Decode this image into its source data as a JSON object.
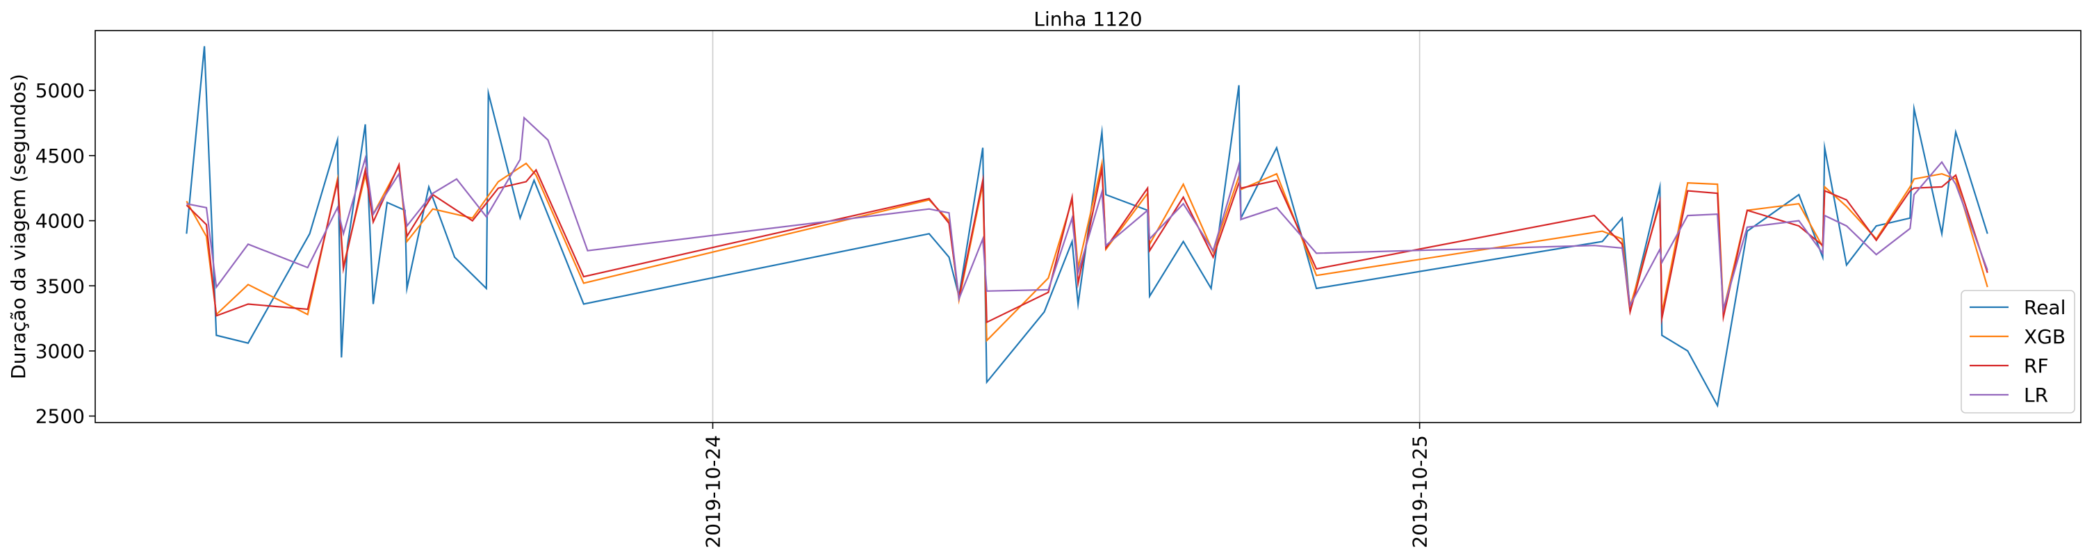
{
  "chart_data": {
    "type": "line",
    "title": "Linha 1120",
    "xlabel": "",
    "ylabel": "Duração da viagem (segundos)",
    "ylim": [
      2450,
      5460
    ],
    "yticks": [
      2500,
      3000,
      3500,
      4000,
      4500,
      5000
    ],
    "xlim": [
      0,
      1000
    ],
    "xticks": [
      {
        "x": 311,
        "label": "2019-10-24"
      },
      {
        "x": 667,
        "label": "2019-10-25"
      }
    ],
    "grid": "vertical",
    "legend_position": "lower-right",
    "series": [
      {
        "name": "Real",
        "color": "#1f77b4",
        "points": [
          [
            46,
            3900
          ],
          [
            55,
            5340
          ],
          [
            61,
            3120
          ],
          [
            77,
            3060
          ],
          [
            108,
            3900
          ],
          [
            122,
            4620
          ],
          [
            124,
            2950
          ],
          [
            127,
            3800
          ],
          [
            136,
            4740
          ],
          [
            140,
            3360
          ],
          [
            147,
            4140
          ],
          [
            156,
            4080
          ],
          [
            157,
            3480
          ],
          [
            168,
            4260
          ],
          [
            181,
            3720
          ],
          [
            197,
            3480
          ],
          [
            198,
            4980
          ],
          [
            214,
            4020
          ],
          [
            221,
            4310
          ],
          [
            246,
            3360
          ],
          [
            420,
            3900
          ],
          [
            430,
            3720
          ],
          [
            435,
            3420
          ],
          [
            447,
            4560
          ],
          [
            449,
            2760
          ],
          [
            478,
            3300
          ],
          [
            492,
            3840
          ],
          [
            495,
            3360
          ],
          [
            507,
            4680
          ],
          [
            509,
            4200
          ],
          [
            530,
            4080
          ],
          [
            531,
            3420
          ],
          [
            548,
            3840
          ],
          [
            562,
            3480
          ],
          [
            576,
            5040
          ],
          [
            577,
            4020
          ],
          [
            595,
            4560
          ],
          [
            615,
            3480
          ],
          [
            759,
            3840
          ],
          [
            769,
            4020
          ],
          [
            773,
            3310
          ],
          [
            788,
            4260
          ],
          [
            789,
            3120
          ],
          [
            802,
            3000
          ],
          [
            817,
            2580
          ],
          [
            832,
            3920
          ],
          [
            858,
            4200
          ],
          [
            870,
            3720
          ],
          [
            871,
            4560
          ],
          [
            882,
            3660
          ],
          [
            897,
            3960
          ],
          [
            914,
            4020
          ],
          [
            916,
            4860
          ],
          [
            930,
            3900
          ],
          [
            937,
            4680
          ],
          [
            953,
            3900
          ]
        ]
      },
      {
        "name": "XGB",
        "color": "#ff7f0e",
        "points": [
          [
            46,
            4150
          ],
          [
            56,
            3880
          ],
          [
            61,
            3280
          ],
          [
            77,
            3510
          ],
          [
            107,
            3280
          ],
          [
            122,
            4320
          ],
          [
            125,
            3650
          ],
          [
            136,
            4350
          ],
          [
            140,
            4050
          ],
          [
            153,
            4420
          ],
          [
            157,
            3840
          ],
          [
            170,
            4090
          ],
          [
            190,
            4020
          ],
          [
            203,
            4300
          ],
          [
            217,
            4440
          ],
          [
            222,
            4350
          ],
          [
            246,
            3520
          ],
          [
            420,
            4160
          ],
          [
            430,
            4000
          ],
          [
            435,
            3390
          ],
          [
            447,
            4280
          ],
          [
            449,
            3080
          ],
          [
            480,
            3560
          ],
          [
            492,
            4160
          ],
          [
            495,
            3640
          ],
          [
            507,
            4440
          ],
          [
            509,
            3780
          ],
          [
            530,
            4210
          ],
          [
            531,
            3820
          ],
          [
            548,
            4280
          ],
          [
            563,
            3760
          ],
          [
            576,
            4340
          ],
          [
            577,
            4240
          ],
          [
            595,
            4360
          ],
          [
            615,
            3580
          ],
          [
            759,
            3920
          ],
          [
            769,
            3860
          ],
          [
            773,
            3340
          ],
          [
            788,
            4130
          ],
          [
            789,
            3290
          ],
          [
            802,
            4290
          ],
          [
            817,
            4280
          ],
          [
            820,
            3310
          ],
          [
            832,
            4080
          ],
          [
            858,
            4130
          ],
          [
            870,
            3800
          ],
          [
            871,
            4260
          ],
          [
            882,
            4110
          ],
          [
            897,
            3860
          ],
          [
            914,
            4260
          ],
          [
            916,
            4320
          ],
          [
            930,
            4360
          ],
          [
            937,
            4320
          ],
          [
            953,
            3490
          ]
        ]
      },
      {
        "name": "RF",
        "color": "#d62728",
        "points": [
          [
            46,
            4120
          ],
          [
            56,
            3970
          ],
          [
            61,
            3270
          ],
          [
            77,
            3360
          ],
          [
            107,
            3320
          ],
          [
            122,
            4300
          ],
          [
            125,
            3630
          ],
          [
            136,
            4390
          ],
          [
            140,
            3990
          ],
          [
            153,
            4430
          ],
          [
            157,
            3880
          ],
          [
            170,
            4200
          ],
          [
            190,
            4000
          ],
          [
            203,
            4250
          ],
          [
            217,
            4300
          ],
          [
            222,
            4390
          ],
          [
            246,
            3570
          ],
          [
            420,
            4170
          ],
          [
            430,
            3980
          ],
          [
            435,
            3410
          ],
          [
            447,
            4310
          ],
          [
            449,
            3220
          ],
          [
            480,
            3450
          ],
          [
            492,
            4180
          ],
          [
            495,
            3520
          ],
          [
            507,
            4400
          ],
          [
            509,
            3790
          ],
          [
            530,
            4250
          ],
          [
            531,
            3770
          ],
          [
            548,
            4180
          ],
          [
            563,
            3720
          ],
          [
            576,
            4290
          ],
          [
            577,
            4250
          ],
          [
            595,
            4310
          ],
          [
            615,
            3630
          ],
          [
            755,
            4040
          ],
          [
            769,
            3820
          ],
          [
            773,
            3300
          ],
          [
            788,
            4150
          ],
          [
            789,
            3250
          ],
          [
            802,
            4230
          ],
          [
            817,
            4210
          ],
          [
            820,
            3260
          ],
          [
            832,
            4080
          ],
          [
            858,
            3960
          ],
          [
            870,
            3810
          ],
          [
            871,
            4230
          ],
          [
            882,
            4160
          ],
          [
            897,
            3850
          ],
          [
            914,
            4230
          ],
          [
            916,
            4250
          ],
          [
            930,
            4260
          ],
          [
            937,
            4350
          ],
          [
            953,
            3600
          ]
        ]
      },
      {
        "name": "LR",
        "color": "#9467bd",
        "points": [
          [
            46,
            4130
          ],
          [
            56,
            4100
          ],
          [
            61,
            3490
          ],
          [
            77,
            3820
          ],
          [
            107,
            3640
          ],
          [
            122,
            4100
          ],
          [
            125,
            3900
          ],
          [
            136,
            4480
          ],
          [
            140,
            4050
          ],
          [
            153,
            4360
          ],
          [
            157,
            3960
          ],
          [
            170,
            4210
          ],
          [
            182,
            4320
          ],
          [
            197,
            4030
          ],
          [
            214,
            4470
          ],
          [
            216,
            4790
          ],
          [
            228,
            4620
          ],
          [
            248,
            3770
          ],
          [
            420,
            4090
          ],
          [
            430,
            4060
          ],
          [
            435,
            3400
          ],
          [
            447,
            3860
          ],
          [
            449,
            3460
          ],
          [
            480,
            3470
          ],
          [
            492,
            4020
          ],
          [
            495,
            3600
          ],
          [
            507,
            4220
          ],
          [
            509,
            3810
          ],
          [
            530,
            4080
          ],
          [
            531,
            3860
          ],
          [
            548,
            4130
          ],
          [
            563,
            3770
          ],
          [
            576,
            4430
          ],
          [
            577,
            4010
          ],
          [
            595,
            4100
          ],
          [
            615,
            3750
          ],
          [
            755,
            3810
          ],
          [
            769,
            3790
          ],
          [
            773,
            3350
          ],
          [
            788,
            3780
          ],
          [
            789,
            3680
          ],
          [
            802,
            4040
          ],
          [
            817,
            4050
          ],
          [
            820,
            3320
          ],
          [
            832,
            3950
          ],
          [
            858,
            4000
          ],
          [
            870,
            3750
          ],
          [
            871,
            4040
          ],
          [
            882,
            3960
          ],
          [
            897,
            3740
          ],
          [
            914,
            3940
          ],
          [
            916,
            4200
          ],
          [
            930,
            4450
          ],
          [
            937,
            4280
          ],
          [
            953,
            3620
          ]
        ]
      }
    ]
  }
}
